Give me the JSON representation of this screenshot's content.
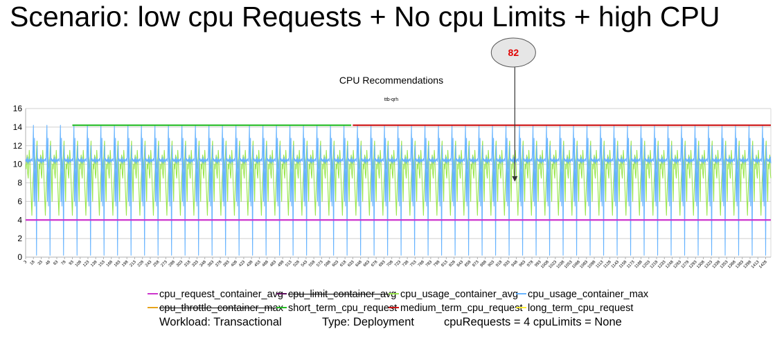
{
  "slide": {
    "title": "Scenario: low cpu Requests + No cpu Limits + high CPU",
    "callout_value": "82",
    "footer": {
      "workload": "Workload: Transactional",
      "type": "Type: Deployment",
      "params": "cpuRequests = 4  cpuLimits = None"
    }
  },
  "colors": {
    "cpu_request_container_avg": "#cc33cc",
    "cpu_limit_container_avg": "#5a0a5a",
    "cpu_usage_container_avg": "#99e64d",
    "cpu_usage_container_max": "#66b3ff",
    "cpu_throttle_container_max": "#e6a31a",
    "short_term_cpu_request": "#22bb22",
    "medium_term_cpu_request": "#cc1111",
    "long_term_cpu_request": "#ffee33",
    "callout_text": "#e00000"
  },
  "chart_data": {
    "type": "line",
    "title": "CPU Recommendations",
    "subtitle": "ttb-qrh",
    "xlabel": "",
    "ylabel": "",
    "ylim": [
      0,
      16
    ],
    "yticks": [
      0,
      2,
      4,
      6,
      8,
      10,
      12,
      14,
      16
    ],
    "xlim": [
      3,
      1438
    ],
    "x_tick_labels": [
      "3",
      "18",
      "33",
      "48",
      "63",
      "78",
      "93",
      "108",
      "123",
      "138",
      "153",
      "168",
      "183",
      "198",
      "213",
      "228",
      "243",
      "258",
      "273",
      "288",
      "303",
      "318",
      "333",
      "348",
      "363",
      "378",
      "393",
      "408",
      "423",
      "438",
      "453",
      "468",
      "483",
      "498",
      "513",
      "528",
      "543",
      "558",
      "573",
      "588",
      "603",
      "618",
      "633",
      "648",
      "663",
      "678",
      "693",
      "708",
      "723",
      "738",
      "753",
      "768",
      "783",
      "798",
      "813",
      "828",
      "843",
      "858",
      "873",
      "888",
      "903",
      "918",
      "933",
      "948",
      "963",
      "978",
      "993",
      "1008",
      "1023",
      "1038",
      "1053",
      "1068",
      "1083",
      "1098",
      "1113",
      "1128",
      "1143",
      "1158",
      "1173",
      "1188",
      "1203",
      "1218",
      "1233",
      "1248",
      "1263",
      "1278",
      "1293",
      "1308",
      "1323",
      "1338",
      "1353",
      "1368",
      "1383",
      "1398",
      "1413",
      "1428"
    ],
    "grid": true,
    "legend_position": "bottom",
    "series": [
      {
        "name": "cpu_request_container_avg",
        "kind": "constant",
        "value": 4,
        "x_range": [
          3,
          1438
        ],
        "strikethrough": false
      },
      {
        "name": "cpu_limit_container_avg",
        "kind": "none",
        "strikethrough": true
      },
      {
        "name": "cpu_usage_container_avg",
        "kind": "periodic",
        "period": 26,
        "pattern": [
          10,
          9.5,
          10.5,
          11,
          9,
          8.5,
          10,
          11.5,
          10.5,
          9,
          7.5,
          6,
          4.5,
          6.5,
          8,
          9,
          10,
          11,
          10.5,
          9.5,
          10,
          11.5,
          12.5,
          10,
          8,
          6
        ],
        "x_range": [
          3,
          1438
        ],
        "strikethrough": false
      },
      {
        "name": "cpu_usage_container_max",
        "kind": "periodic",
        "period": 26,
        "pattern": [
          10.5,
          10.3,
          10.6,
          10.2,
          10.8,
          10.1,
          10.5,
          10.3,
          10.6,
          10.2,
          10.5,
          10.4,
          10.6,
          10.3,
          11.5,
          14.2,
          6,
          12.8,
          5.5,
          9,
          10.5,
          0.2,
          12,
          10.4,
          10.6,
          10.3
        ],
        "x_range": [
          3,
          1438
        ],
        "strikethrough": false
      },
      {
        "name": "cpu_throttle_container_max",
        "kind": "none",
        "strikethrough": true
      },
      {
        "name": "short_term_cpu_request",
        "kind": "constant",
        "value": 14.2,
        "x_range": [
          93,
          630
        ],
        "strikethrough": false
      },
      {
        "name": "medium_term_cpu_request",
        "kind": "constant",
        "value": 14.2,
        "x_range": [
          633,
          1438
        ],
        "strikethrough": false
      },
      {
        "name": "long_term_cpu_request",
        "kind": "none",
        "strikethrough": false
      }
    ],
    "annotation": {
      "label": "82",
      "x": 945,
      "y_from": 16,
      "y_to": 8.2
    }
  }
}
